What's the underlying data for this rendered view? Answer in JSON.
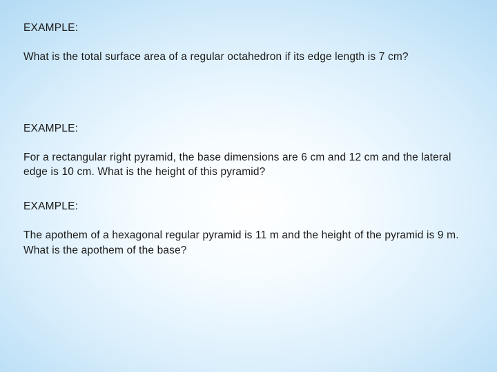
{
  "background": {
    "gradient_type": "radial",
    "stops": [
      "#ffffff",
      "#f4fbff",
      "#d9eefc",
      "#b7ddf5",
      "#9bcdee",
      "#8bc2e9"
    ]
  },
  "typography": {
    "font_family": "Verdana, Geneva, sans-serif",
    "font_size_pt": 12,
    "text_color": "#1a1a1a",
    "line_height": 1.4
  },
  "examples": [
    {
      "heading": "EXAMPLE:",
      "body": "What is the total surface area of a regular octahedron if its edge length is 7 cm?",
      "gap_after": "lg"
    },
    {
      "heading": "EXAMPLE:",
      "body": "For a rectangular right pyramid, the base dimensions are 6 cm and 12 cm and the lateral edge is 10 cm. What is the height of this pyramid?",
      "gap_after": "md"
    },
    {
      "heading": "EXAMPLE:",
      "body": "The apothem of a hexagonal regular pyramid is 11 m and the height of the pyramid is 9 m. What is the apothem of the base?",
      "gap_after": "sm"
    }
  ]
}
